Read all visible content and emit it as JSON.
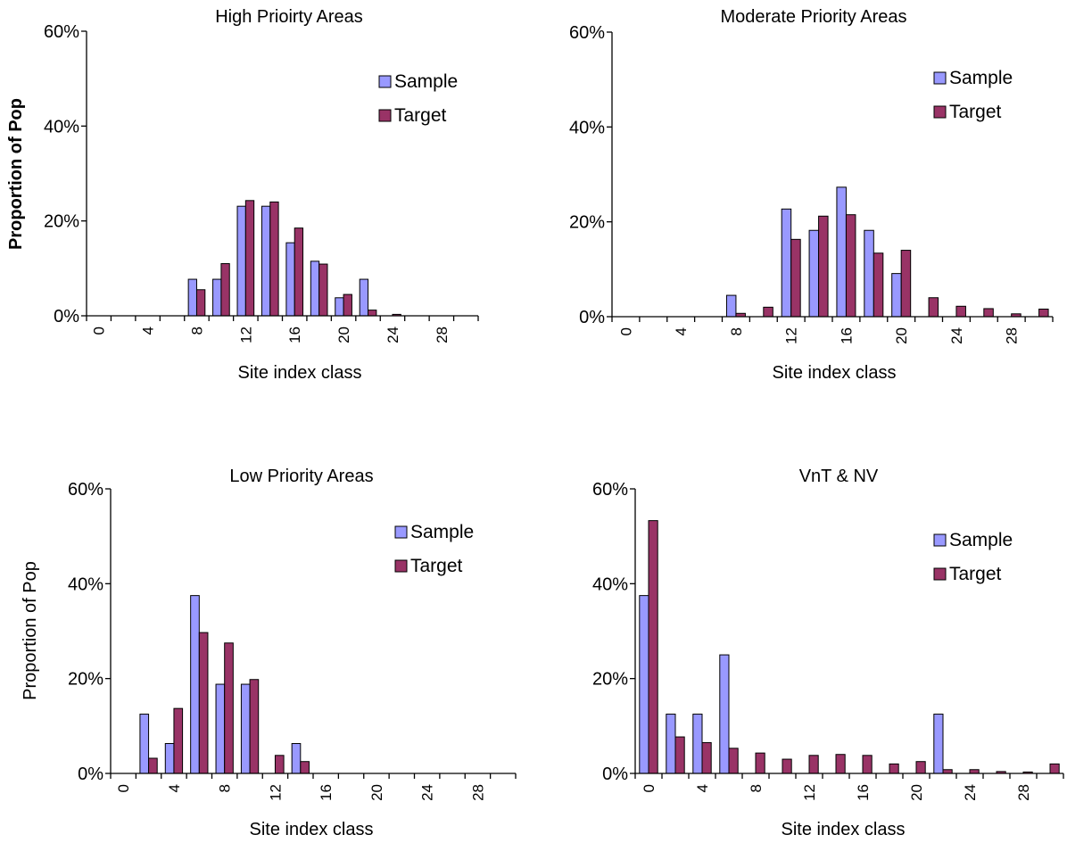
{
  "chart_data": [
    {
      "type": "bar",
      "title": "High Prioirty Areas",
      "xlabel": "Site index class",
      "ylabel": "Proportion of Pop",
      "ylabel_bold": true,
      "ylim": [
        0,
        0.6
      ],
      "yticks": [
        "0%",
        "20%",
        "40%",
        "60%"
      ],
      "categories": [
        0,
        2,
        4,
        6,
        8,
        10,
        12,
        14,
        16,
        18,
        20,
        22,
        24,
        26,
        28,
        30
      ],
      "xtick_labels": [
        "0",
        "4",
        "8",
        "12",
        "16",
        "20",
        "24",
        "28"
      ],
      "legend_position": "top-right",
      "series": [
        {
          "name": "Sample",
          "color": "#9999ff",
          "values": [
            0,
            0,
            0,
            0,
            0.077,
            0.077,
            0.231,
            0.231,
            0.154,
            0.115,
            0.038,
            0.077,
            0,
            0,
            0,
            0
          ]
        },
        {
          "name": "Target",
          "color": "#993366",
          "values": [
            0,
            0,
            0,
            0,
            0.055,
            0.11,
            0.243,
            0.24,
            0.185,
            0.109,
            0.045,
            0.012,
            0.003,
            0,
            0,
            0
          ]
        }
      ]
    },
    {
      "type": "bar",
      "title": "Moderate Priority Areas",
      "xlabel": "Site index class",
      "ylabel": "",
      "ylim": [
        0,
        0.6
      ],
      "yticks": [
        "0%",
        "20%",
        "40%",
        "60%"
      ],
      "categories": [
        0,
        2,
        4,
        6,
        8,
        10,
        12,
        14,
        16,
        18,
        20,
        22,
        24,
        26,
        28,
        30
      ],
      "xtick_labels": [
        "0",
        "4",
        "8",
        "12",
        "16",
        "20",
        "24",
        "28"
      ],
      "legend_position": "top-right",
      "series": [
        {
          "name": "Sample",
          "color": "#9999ff",
          "values": [
            0,
            0,
            0,
            0,
            0.045,
            0,
            0.227,
            0.182,
            0.273,
            0.182,
            0.091,
            0,
            0,
            0,
            0,
            0
          ]
        },
        {
          "name": "Target",
          "color": "#993366",
          "values": [
            0,
            0,
            0,
            0,
            0.007,
            0.02,
            0.163,
            0.212,
            0.215,
            0.134,
            0.14,
            0.04,
            0.022,
            0.017,
            0.006,
            0.016
          ]
        }
      ]
    },
    {
      "type": "bar",
      "title": "Low Priority Areas",
      "xlabel": "Site index class",
      "ylabel": "Proportion of Pop",
      "ylabel_bold": false,
      "ylim": [
        0,
        0.6
      ],
      "yticks": [
        "0%",
        "20%",
        "40%",
        "60%"
      ],
      "categories": [
        0,
        2,
        4,
        6,
        8,
        10,
        12,
        14,
        16,
        18,
        20,
        22,
        24,
        26,
        28,
        30
      ],
      "xtick_labels": [
        "0",
        "4",
        "8",
        "12",
        "16",
        "20",
        "24",
        "28"
      ],
      "legend_position": "top-right",
      "series": [
        {
          "name": "Sample",
          "color": "#9999ff",
          "values": [
            0,
            0.125,
            0.063,
            0.375,
            0.188,
            0.188,
            0,
            0.063,
            0,
            0,
            0,
            0,
            0,
            0,
            0,
            0
          ]
        },
        {
          "name": "Target",
          "color": "#993366",
          "values": [
            0,
            0.032,
            0.137,
            0.297,
            0.275,
            0.198,
            0.038,
            0.025,
            0,
            0,
            0,
            0,
            0,
            0,
            0,
            0
          ]
        }
      ]
    },
    {
      "type": "bar",
      "title": "VnT & NV",
      "xlabel": "Site index class",
      "ylabel": "",
      "ylim": [
        0,
        0.6
      ],
      "yticks": [
        "0%",
        "20%",
        "40%",
        "60%"
      ],
      "categories": [
        0,
        2,
        4,
        6,
        8,
        10,
        12,
        14,
        16,
        18,
        20,
        22,
        24,
        26,
        28,
        30
      ],
      "xtick_labels": [
        "0",
        "4",
        "8",
        "12",
        "16",
        "20",
        "24",
        "28"
      ],
      "legend_position": "top-right",
      "series": [
        {
          "name": "Sample",
          "color": "#9999ff",
          "values": [
            0.375,
            0.125,
            0.125,
            0.25,
            0,
            0,
            0,
            0,
            0,
            0,
            0,
            0.125,
            0,
            0,
            0,
            0
          ]
        },
        {
          "name": "Target",
          "color": "#993366",
          "values": [
            0.533,
            0.077,
            0.065,
            0.053,
            0.043,
            0.03,
            0.038,
            0.04,
            0.038,
            0.02,
            0.025,
            0.008,
            0.008,
            0.004,
            0.003,
            0.02
          ]
        }
      ]
    }
  ]
}
